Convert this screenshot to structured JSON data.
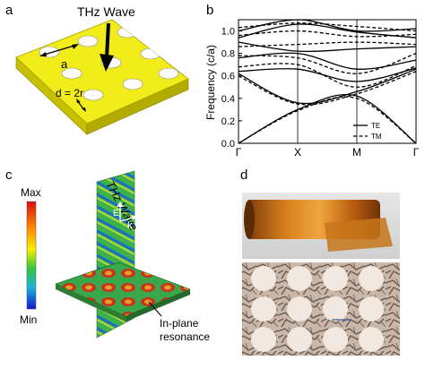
{
  "panels": {
    "a": {
      "label": "a",
      "arrow_label": "THz Wave",
      "lattice_label": "a",
      "hole_label": "d = 2r"
    },
    "b": {
      "label": "b"
    },
    "c": {
      "label": "c",
      "scale_max": "Max",
      "scale_min": "Min",
      "wave_label": "THz Wave",
      "e_label": "E",
      "k_label": "k",
      "resonance_line1": "In-plane",
      "resonance_line2": "resonance"
    },
    "d": {
      "label": "d"
    }
  },
  "chart_data": {
    "type": "line",
    "title": "",
    "xlabel": "",
    "ylabel": "Frequency (c/a)",
    "ylim": [
      0,
      1.1
    ],
    "yticks": [
      0.0,
      0.2,
      0.4,
      0.6,
      0.8,
      1.0
    ],
    "ytick_labels": [
      "0.0",
      "0.2",
      "0.4",
      "0.6",
      "0.8",
      "1.0"
    ],
    "x_categories": [
      "Γ",
      "X",
      "M",
      "Γ"
    ],
    "x": [
      0,
      1,
      2,
      3
    ],
    "legend_position": "bottom-right",
    "series": [
      {
        "name": "TE",
        "style": "solid",
        "bands": [
          [
            0.0,
            0.3,
            0.42,
            0.0
          ],
          [
            0.62,
            0.36,
            0.46,
            0.66
          ],
          [
            0.64,
            0.66,
            0.55,
            0.67
          ],
          [
            0.76,
            0.8,
            0.66,
            0.74
          ],
          [
            0.9,
            0.82,
            0.84,
            0.86
          ],
          [
            0.94,
            1.06,
            0.99,
            0.94
          ],
          [
            1.0,
            1.1,
            1.0,
            1.02
          ]
        ]
      },
      {
        "name": "TM",
        "style": "dashed",
        "bands": [
          [
            0.0,
            0.29,
            0.4,
            0.0
          ],
          [
            0.6,
            0.35,
            0.44,
            0.64
          ],
          [
            0.68,
            0.7,
            0.5,
            0.69
          ],
          [
            0.78,
            0.76,
            0.62,
            0.8
          ],
          [
            0.86,
            0.88,
            0.9,
            0.88
          ],
          [
            0.96,
            1.0,
            0.95,
            0.97
          ],
          [
            1.03,
            1.07,
            1.04,
            1.0
          ]
        ]
      }
    ]
  }
}
